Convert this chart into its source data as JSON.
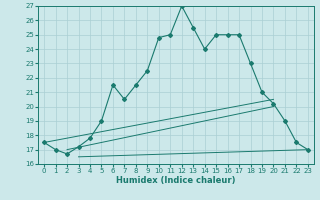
{
  "xlabel": "Humidex (Indice chaleur)",
  "bg_color": "#cce8ea",
  "grid_color": "#aacfd4",
  "line_color": "#1a7a6e",
  "xlim": [
    -0.5,
    23.5
  ],
  "ylim": [
    16,
    27
  ],
  "yticks": [
    16,
    17,
    18,
    19,
    20,
    21,
    22,
    23,
    24,
    25,
    26,
    27
  ],
  "xticks": [
    0,
    1,
    2,
    3,
    4,
    5,
    6,
    7,
    8,
    9,
    10,
    11,
    12,
    13,
    14,
    15,
    16,
    17,
    18,
    19,
    20,
    21,
    22,
    23
  ],
  "main_x": [
    0,
    1,
    2,
    3,
    4,
    5,
    6,
    7,
    8,
    9,
    10,
    11,
    12,
    13,
    14,
    15,
    16,
    17,
    18,
    19,
    20,
    21,
    22,
    23
  ],
  "main_y": [
    17.5,
    17.0,
    16.7,
    17.2,
    17.8,
    19.0,
    21.5,
    20.5,
    21.5,
    22.5,
    24.8,
    25.0,
    27.0,
    25.5,
    24.0,
    25.0,
    25.0,
    25.0,
    23.0,
    21.0,
    20.2,
    19.0,
    17.5,
    17.0
  ],
  "line2_x": [
    0,
    20
  ],
  "line2_y": [
    17.5,
    20.5
  ],
  "line3_x": [
    2,
    20
  ],
  "line3_y": [
    17.0,
    20.0
  ],
  "line4_x": [
    3,
    23
  ],
  "line4_y": [
    16.5,
    17.0
  ]
}
